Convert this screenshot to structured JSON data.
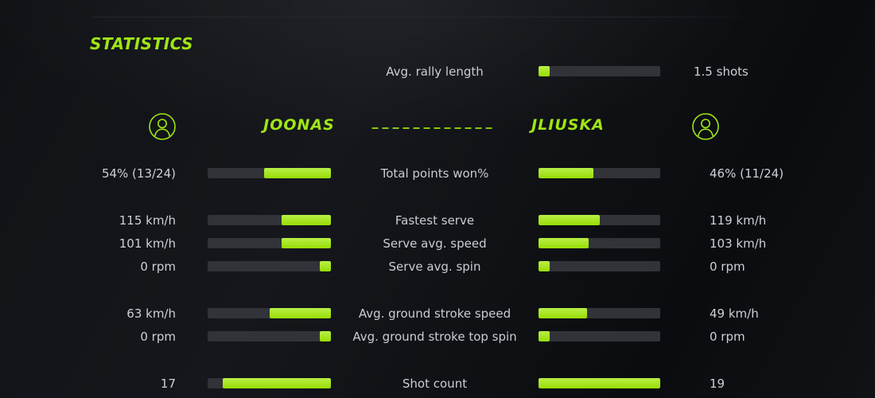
{
  "title": "STATISTICS",
  "colors": {
    "accent": "#9fe614",
    "bar_fill_start": "#b9ef48",
    "bar_fill_end": "#97dd04",
    "bar_track": "#313338",
    "value_text": "#ccd1d5",
    "label_text": "#c9cdd1"
  },
  "header": {
    "left_player": "JOONAS",
    "right_player": "JLIUSKA",
    "left_avatar_icon": "person-circle-icon",
    "right_avatar_icon": "person-circle-icon"
  },
  "rally_row": {
    "label": "Avg. rally length",
    "right_value": "1.5 shots",
    "right_fill_pct": 9
  },
  "stat_rows": [
    {
      "label": "Total points won%",
      "left_value": "54% (13/24)",
      "left_fill_pct": 54,
      "right_value": "46% (11/24)",
      "right_fill_pct": 45,
      "group_start": false
    },
    {
      "label": "Fastest serve",
      "left_value": "115 km/h",
      "left_fill_pct": 40,
      "right_value": "119 km/h",
      "right_fill_pct": 50,
      "group_start": true
    },
    {
      "label": "Serve avg. speed",
      "left_value": "101 km/h",
      "left_fill_pct": 40,
      "right_value": "103 km/h",
      "right_fill_pct": 41,
      "group_start": false
    },
    {
      "label": "Serve avg. spin",
      "left_value": "0 rpm",
      "left_fill_pct": 9,
      "right_value": "0 rpm",
      "right_fill_pct": 9,
      "group_start": false
    },
    {
      "label": "Avg. ground stroke speed",
      "left_value": "63 km/h",
      "left_fill_pct": 50,
      "right_value": "49 km/h",
      "right_fill_pct": 40,
      "group_start": true
    },
    {
      "label": "Avg. ground stroke top spin",
      "left_value": "0 rpm",
      "left_fill_pct": 9,
      "right_value": "0 rpm",
      "right_fill_pct": 9,
      "group_start": false
    },
    {
      "label": "Shot count",
      "left_value": "17",
      "left_fill_pct": 88,
      "right_value": "19",
      "right_fill_pct": 100,
      "group_start": true
    }
  ]
}
